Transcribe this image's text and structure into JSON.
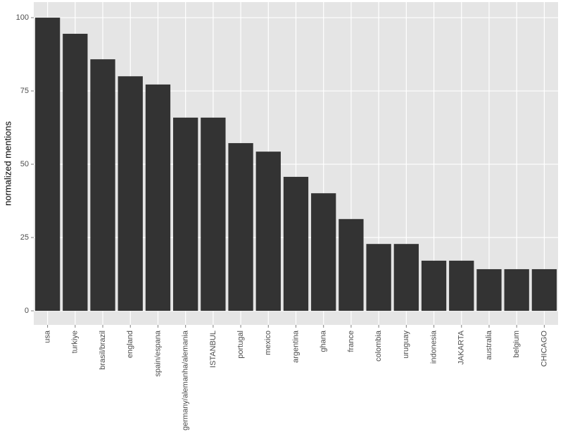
{
  "chart_data": {
    "type": "bar",
    "y_label": "normalized mentions",
    "categories": [
      "usa",
      "turkiye",
      "brasil/brazil",
      "england",
      "spain/espana",
      "germany/alemanha/alemania",
      "ISTANBUL",
      "portugal",
      "mexico",
      "argentina",
      "ghana",
      "france",
      "colombia",
      "uruguay",
      "indonesia",
      "JAKARTA",
      "australia",
      "belgium",
      "CHICAGO"
    ],
    "values": [
      100,
      94.5,
      85.8,
      80.0,
      77.2,
      65.9,
      65.9,
      57.2,
      54.3,
      45.7,
      40.1,
      31.3,
      22.8,
      22.8,
      17.1,
      17.1,
      14.2,
      14.2,
      14.2
    ],
    "color": "#333333",
    "ylim": [
      -4.8,
      105.3
    ],
    "yticks": [
      0,
      25,
      50,
      75,
      100
    ],
    "grid": true
  }
}
